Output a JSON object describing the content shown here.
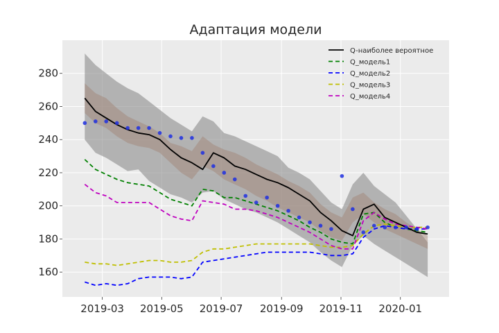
{
  "chart_data": {
    "type": "line",
    "title": "Адаптация модели",
    "xlabel": "",
    "ylabel": "",
    "x_tick_labels": [
      "2019-03",
      "2019-05",
      "2019-07",
      "2019-09",
      "2019-11",
      "2020-01"
    ],
    "x_tick_dates": [
      "2019-03-01",
      "2019-05-01",
      "2019-07-01",
      "2019-09-01",
      "2019-11-01",
      "2020-01-01"
    ],
    "xlim": [
      "2019-01-19",
      "2020-02-20"
    ],
    "ylim": [
      145,
      300
    ],
    "yticks": [
      160,
      180,
      200,
      220,
      240,
      260,
      280
    ],
    "grid": true,
    "legend_position": "top-right",
    "dates": [
      "2019-02-11",
      "2019-02-22",
      "2019-03-05",
      "2019-03-16",
      "2019-03-27",
      "2019-04-07",
      "2019-04-18",
      "2019-04-29",
      "2019-05-10",
      "2019-05-21",
      "2019-06-01",
      "2019-06-12",
      "2019-06-23",
      "2019-07-04",
      "2019-07-15",
      "2019-07-26",
      "2019-08-06",
      "2019-08-17",
      "2019-08-28",
      "2019-09-08",
      "2019-09-19",
      "2019-09-30",
      "2019-10-11",
      "2019-10-22",
      "2019-11-02",
      "2019-11-13",
      "2019-11-24",
      "2019-12-05",
      "2019-12-16",
      "2019-12-27",
      "2020-01-07",
      "2020-01-18",
      "2020-01-29"
    ],
    "band_outer": {
      "color": "#8c8c8c",
      "upper": [
        292,
        285,
        280,
        275,
        271,
        268,
        263,
        258,
        253,
        249,
        245,
        254,
        251,
        244,
        242,
        239,
        236,
        233,
        230,
        223,
        220,
        216,
        209,
        202,
        198,
        213,
        220,
        212,
        207,
        202,
        194,
        186,
        178
      ],
      "lower": [
        240,
        232,
        229,
        225,
        221,
        222,
        215,
        211,
        207,
        205,
        202,
        208,
        209,
        204,
        201,
        198,
        196,
        193,
        190,
        186,
        182,
        178,
        172,
        167,
        163,
        176,
        182,
        177,
        173,
        169,
        165,
        161,
        157
      ]
    },
    "band_inner": {
      "color": "#a08070",
      "upper": [
        274,
        268,
        265,
        259,
        254,
        251,
        248,
        244,
        238,
        236,
        233,
        242,
        237,
        234,
        232,
        229,
        225,
        222,
        219,
        215,
        212,
        208,
        201,
        196,
        193,
        205,
        208,
        202,
        198,
        195,
        190,
        186,
        182
      ],
      "lower": [
        256,
        250,
        247,
        242,
        238,
        236,
        235,
        232,
        226,
        220,
        216,
        224,
        221,
        216,
        213,
        210,
        206,
        203,
        199,
        196,
        193,
        190,
        185,
        181,
        179,
        190,
        195,
        190,
        186,
        183,
        180,
        177,
        174
      ]
    },
    "series": [
      {
        "name": "Q-наиболее вероятное",
        "color": "#000000",
        "dash": "",
        "values": [
          265,
          257,
          253,
          249,
          246,
          244,
          243,
          240,
          234,
          229,
          226,
          222,
          232,
          229,
          224,
          222,
          219,
          216,
          214,
          211,
          207,
          203,
          196,
          191,
          185,
          182,
          198,
          201,
          193,
          190,
          187,
          184,
          183
        ]
      },
      {
        "name": "Q_модель1",
        "color": "#008000",
        "dash": "6,4",
        "values": [
          228,
          222,
          219,
          216,
          214,
          213,
          212,
          208,
          204,
          202,
          200,
          210,
          209,
          205,
          205,
          203,
          201,
          199,
          197,
          194,
          191,
          187,
          184,
          180,
          178,
          177,
          195,
          196,
          190,
          187,
          186,
          185,
          184
        ]
      },
      {
        "name": "Q_модель2",
        "color": "#0000ff",
        "dash": "6,4",
        "values": [
          154,
          152,
          153,
          152,
          153,
          156,
          157,
          157,
          157,
          156,
          157,
          166,
          167,
          168,
          169,
          170,
          171,
          172,
          172,
          172,
          172,
          172,
          171,
          170,
          170,
          171,
          181,
          186,
          188,
          187,
          186,
          186,
          186
        ]
      },
      {
        "name": "Q_модель3",
        "color": "#bfbf00",
        "dash": "6,4",
        "values": [
          166,
          165,
          165,
          164,
          165,
          166,
          167,
          167,
          166,
          166,
          167,
          172,
          174,
          174,
          175,
          176,
          177,
          177,
          177,
          177,
          177,
          177,
          176,
          175,
          175,
          176,
          183,
          188,
          189,
          188,
          187,
          187,
          187
        ]
      },
      {
        "name": "Q_модель4",
        "color": "#bf00bf",
        "dash": "6,4",
        "values": [
          213,
          208,
          206,
          202,
          202,
          202,
          202,
          198,
          194,
          192,
          191,
          203,
          202,
          201,
          198,
          198,
          197,
          195,
          193,
          190,
          187,
          184,
          180,
          176,
          174,
          174,
          191,
          196,
          192,
          189,
          188,
          187,
          186
        ]
      }
    ],
    "observations": {
      "color": "#1f2fe0",
      "dates": [
        "2019-02-11",
        "2019-02-22",
        "2019-03-05",
        "2019-03-16",
        "2019-03-27",
        "2019-04-07",
        "2019-04-18",
        "2019-04-29",
        "2019-05-10",
        "2019-05-21",
        "2019-06-01",
        "2019-06-12",
        "2019-06-23",
        "2019-07-04",
        "2019-07-15",
        "2019-07-26",
        "2019-08-06",
        "2019-08-17",
        "2019-08-28",
        "2019-09-08",
        "2019-09-19",
        "2019-09-30",
        "2019-10-11",
        "2019-10-22",
        "2019-11-02",
        "2019-11-13",
        "2019-11-24",
        "2019-12-05",
        "2019-12-16",
        "2019-12-27",
        "2020-01-07",
        "2020-01-18",
        "2020-01-29"
      ],
      "values": [
        250,
        251,
        251,
        250,
        247,
        247,
        247,
        244,
        242,
        241,
        241,
        232,
        224,
        220,
        216,
        206,
        202,
        205,
        200,
        197,
        193,
        190,
        188,
        186,
        218,
        198,
        184,
        188,
        187,
        187,
        187,
        186,
        187
      ]
    }
  }
}
